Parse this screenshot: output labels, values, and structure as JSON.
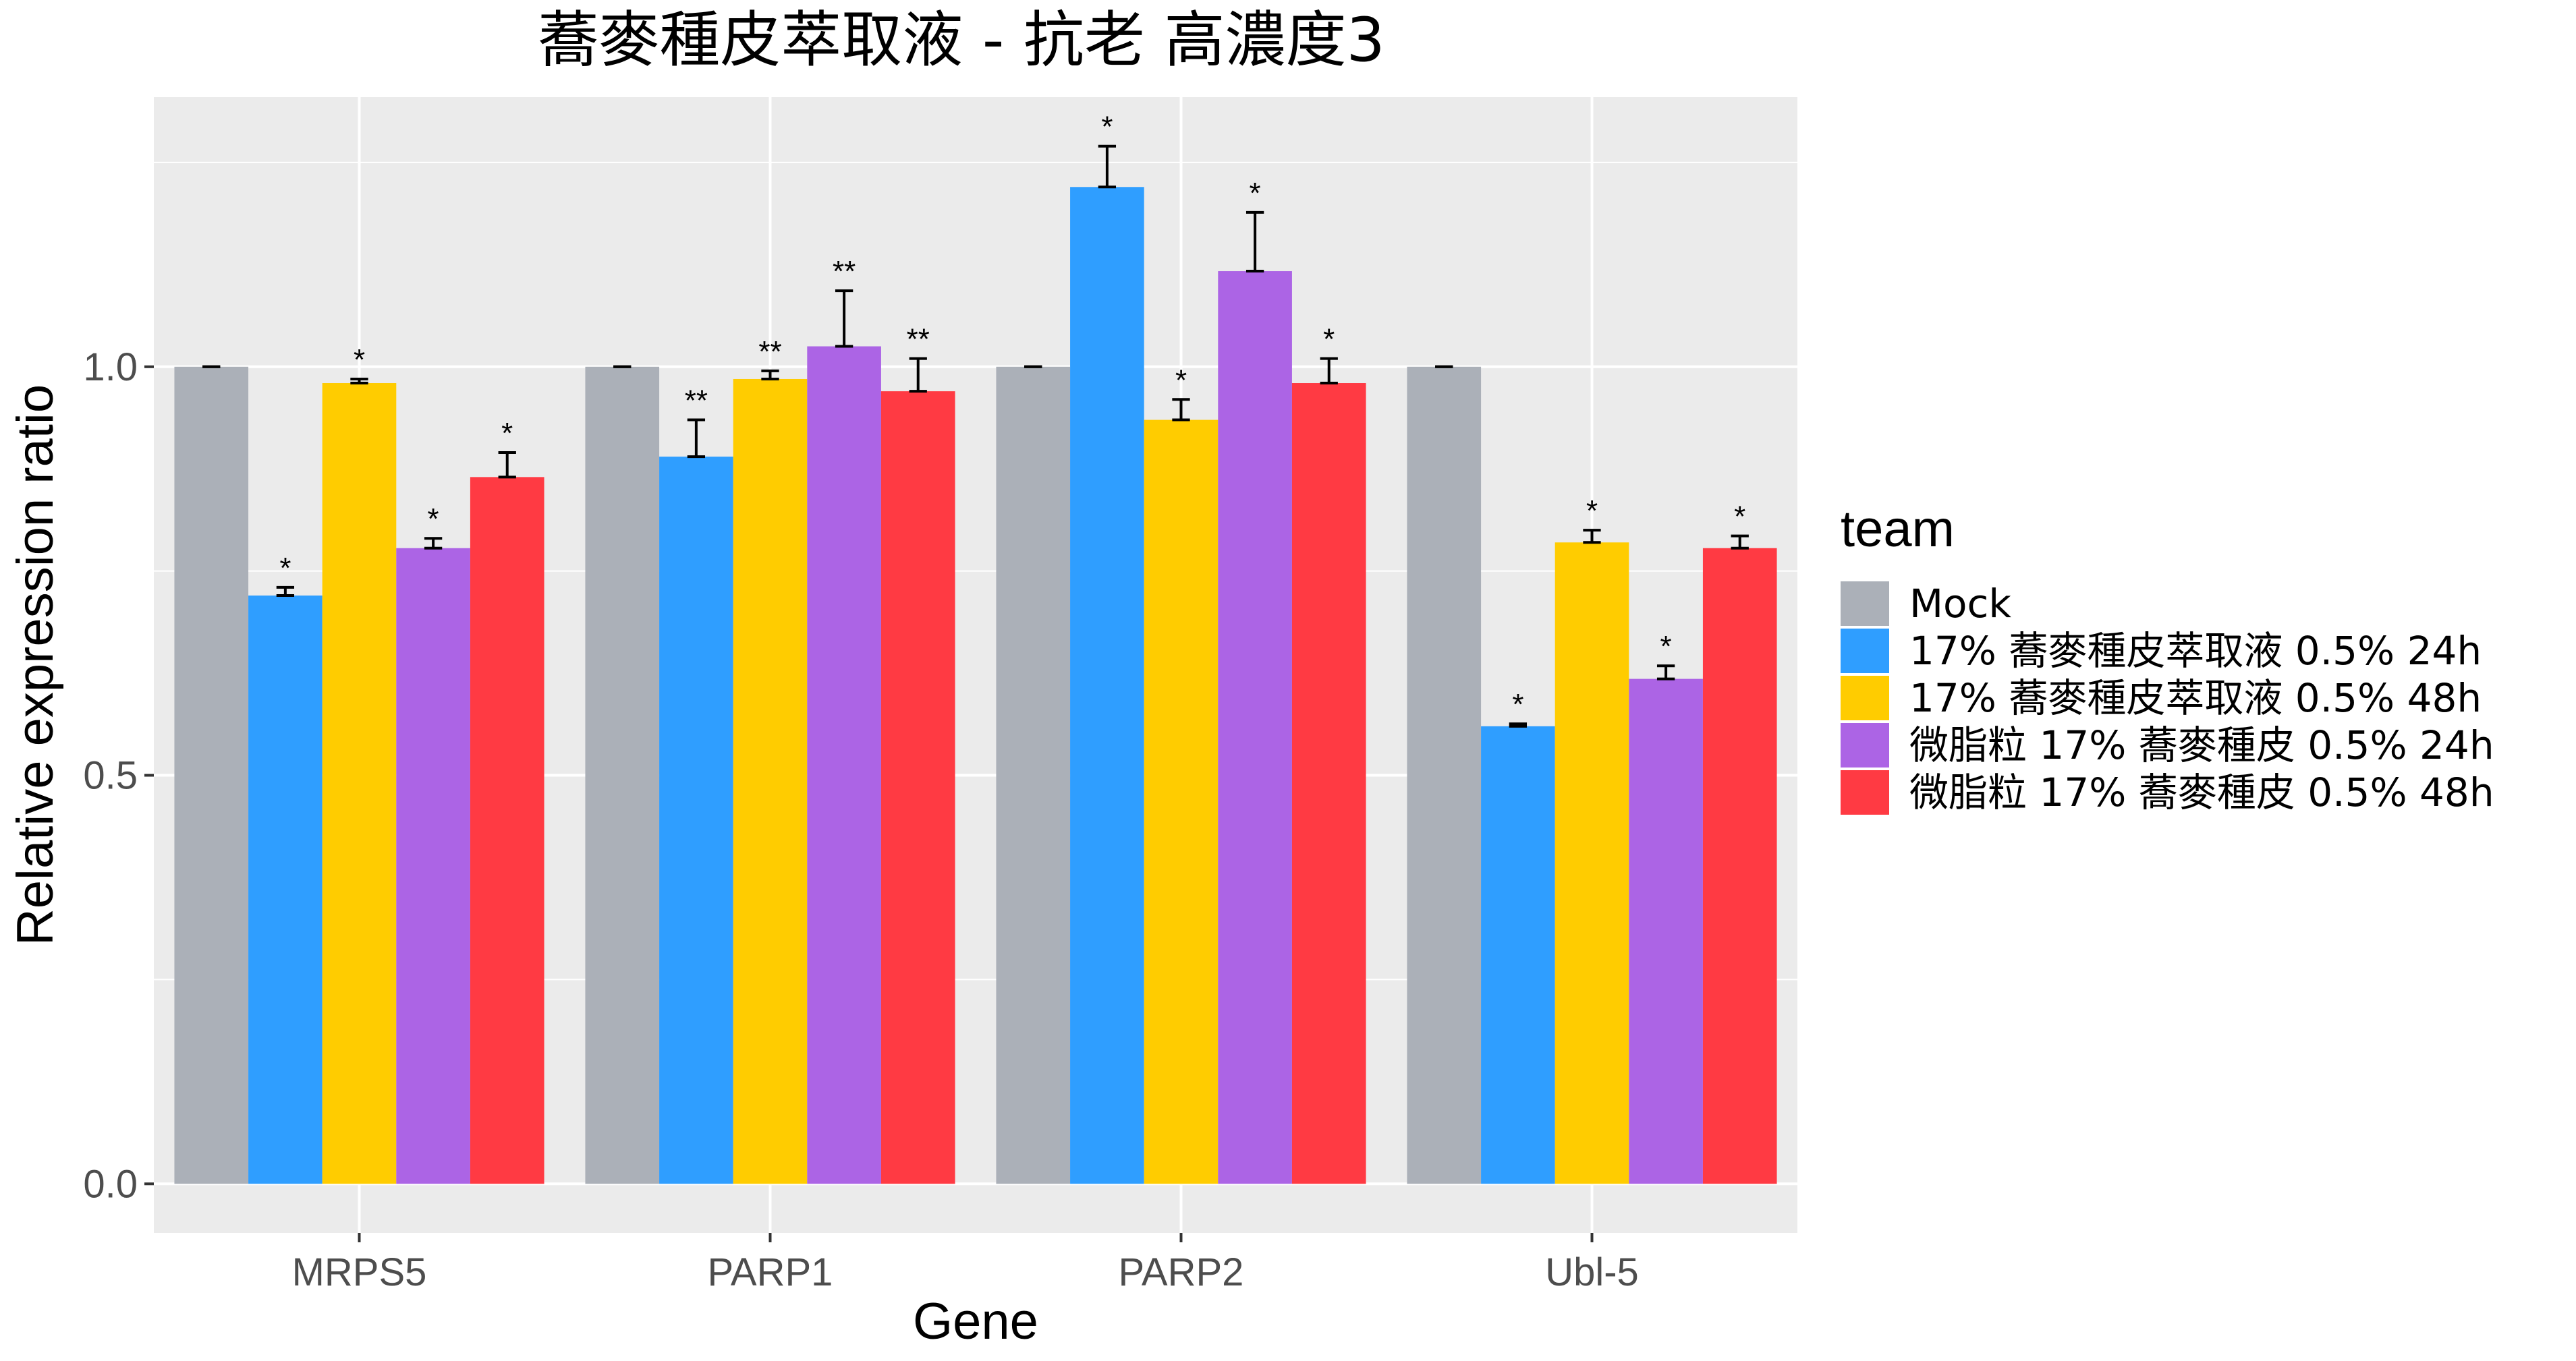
{
  "chart_data": {
    "type": "bar",
    "title": "蕎麥種皮萃取液 - 抗老 高濃度3",
    "xlabel": "Gene",
    "ylabel": "Relative expression ratio",
    "categories": [
      "MRPS5",
      "PARP1",
      "PARP2",
      "Ubl-5"
    ],
    "ylim": [
      -0.06,
      1.33
    ],
    "yticks": [
      "0.0",
      "0.5",
      "1.0"
    ],
    "grid": true,
    "legend": {
      "title": "team",
      "placement": "right"
    },
    "series": [
      {
        "name": "Mock",
        "color": "#ABB0B8",
        "values": [
          1.0,
          1.0,
          1.0,
          1.0
        ],
        "errors": [
          0.0,
          0.0,
          0.0,
          0.0
        ],
        "sig": [
          "",
          "",
          "",
          ""
        ]
      },
      {
        "name": "17% 蕎麥種皮萃取液 0.5% 24h",
        "color": "#2F9EFF",
        "values": [
          0.72,
          0.89,
          1.22,
          0.56
        ],
        "errors": [
          0.01,
          0.045,
          0.05,
          0.003
        ],
        "sig": [
          "*",
          "**",
          "*",
          "*"
        ]
      },
      {
        "name": "17% 蕎麥種皮萃取液 0.5% 48h",
        "color": "#FFCC00",
        "values": [
          0.98,
          0.985,
          0.935,
          0.785
        ],
        "errors": [
          0.005,
          0.01,
          0.025,
          0.015
        ],
        "sig": [
          "*",
          "**",
          "*",
          "*"
        ]
      },
      {
        "name": "微脂粒 17% 蕎麥種皮 0.5% 24h",
        "color": "#AC64E5",
        "values": [
          0.778,
          1.025,
          1.117,
          0.618
        ],
        "errors": [
          0.012,
          0.068,
          0.072,
          0.016
        ],
        "sig": [
          "*",
          "**",
          "*",
          "*"
        ]
      },
      {
        "name": "微脂粒 17% 蕎麥種皮 0.5% 48h",
        "color": "#FF3A43",
        "values": [
          0.865,
          0.97,
          0.98,
          0.778
        ],
        "errors": [
          0.03,
          0.04,
          0.03,
          0.015
        ],
        "sig": [
          "*",
          "**",
          "*",
          "*"
        ]
      }
    ]
  }
}
